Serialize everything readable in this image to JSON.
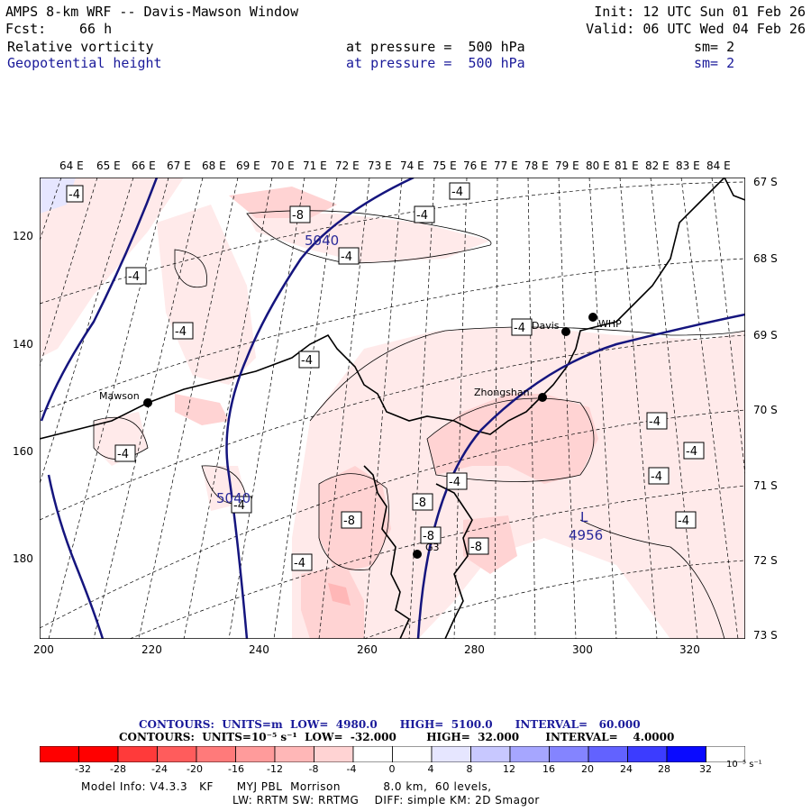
{
  "header": {
    "title": "AMPS 8-km WRF -- Davis-Mawson Window",
    "fcst_label": "Fcst:",
    "fcst_value": "66 h",
    "init": "Init: 12 UTC Sun 01 Feb 26",
    "valid": "Valid: 06 UTC Wed 04 Feb 26",
    "fields": [
      {
        "name": "Relative vorticity",
        "pressure": "at pressure =  500 hPa",
        "sm": "sm= 2",
        "color": "#000000"
      },
      {
        "name": "Geopotential height",
        "pressure": "at pressure =  500 hPa",
        "sm": "sm= 2",
        "color": "#1a1a9a"
      }
    ]
  },
  "axes": {
    "top_lon": [
      "64 E",
      "65 E",
      "66 E",
      "67 E",
      "68 E",
      "69 E",
      "70 E",
      "71 E",
      "72 E",
      "73 E",
      "74 E",
      "75 E",
      "76 E",
      "77 E",
      "78 E",
      "79 E",
      "80 E",
      "81 E",
      "82 E",
      "83 E",
      "84 E"
    ],
    "right_lat": [
      "67 S",
      "68 S",
      "69 S",
      "70 S",
      "71 S",
      "72 S",
      "73 S"
    ],
    "left_y": [
      "120",
      "140",
      "160",
      "180"
    ],
    "bottom_x": [
      "200",
      "220",
      "240",
      "260",
      "280",
      "300",
      "320"
    ]
  },
  "map": {
    "stations": [
      {
        "name": "Mawson"
      },
      {
        "name": "Davis"
      },
      {
        "name": "WHP"
      },
      {
        "name": "Zhongshan"
      },
      {
        "name": "G3"
      }
    ],
    "contour_labels": [
      "-4",
      "-4",
      "-8",
      "-4",
      "-4",
      "-4",
      "-4",
      "-4",
      "-4",
      "-4",
      "-4",
      "-4",
      "-4",
      "-4",
      "-4",
      "-4",
      "-8",
      "-8",
      "-8",
      "-8",
      "-4"
    ],
    "height_labels": [
      "5040",
      "5040",
      "4956"
    ],
    "low_marker": "L"
  },
  "footer": {
    "contours1": "CONTOURS:  UNITS=m  LOW=  4980.0      HIGH=  5100.0      INTERVAL=   60.000",
    "contours2": "CONTOURS:  UNITS=10⁻⁵ s⁻¹  LOW=  -32.000        HIGH=  32.000       INTERVAL=    4.0000",
    "colorbar_labels": [
      "-32",
      "-28",
      "-24",
      "-20",
      "-16",
      "-12",
      "-8",
      "-4",
      "0",
      "4",
      "8",
      "12",
      "16",
      "20",
      "24",
      "28",
      "32"
    ],
    "colorbar_unit": "10⁻⁵ s⁻¹",
    "colorbar_colors": [
      "#ff0000",
      "#ff3a3a",
      "#ff5c5c",
      "#ff7a7a",
      "#ff9b9b",
      "#ffb7b7",
      "#ffd3d3",
      "#ffeaea",
      "#ffffff",
      "#ffffff",
      "#e6e6ff",
      "#c8c8ff",
      "#a6a6ff",
      "#8484ff",
      "#6262ff",
      "#3c3cff",
      "#0a0aff"
    ],
    "model_info": "Model Info: V4.3.3   KF      MYJ PBL  Morrison           8.0 km,  60 levels,",
    "model_info2": "LW: RRTM SW: RRTMG    DIFF: simple KM: 2D Smagor"
  }
}
